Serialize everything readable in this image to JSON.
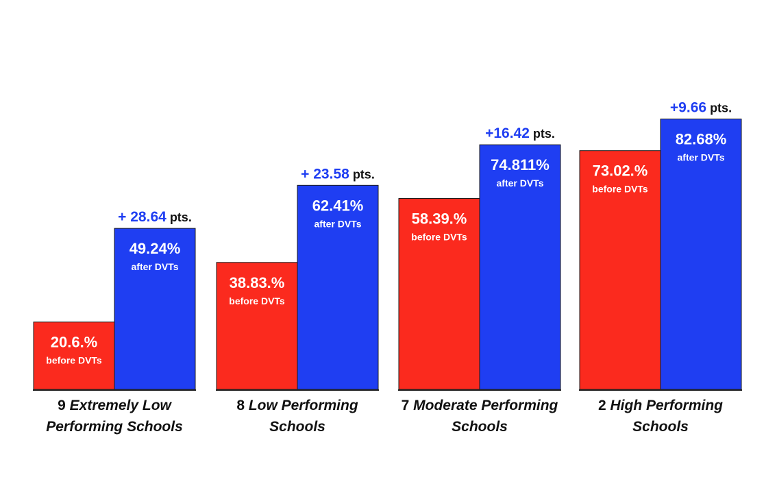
{
  "chart_data": {
    "type": "bar",
    "colors": {
      "before": "#fb2a1e",
      "after": "#1f3ef2",
      "delta_text": "#1f3ef2",
      "baseline": "#222222"
    },
    "categories": [
      {
        "count": "9",
        "lines": [
          {
            "lead": "9 ",
            "rest": "Extremely Low"
          },
          {
            "lead": "",
            "rest": "Performing Schools"
          }
        ]
      },
      {
        "count": "8",
        "lines": [
          {
            "lead": "8 ",
            "rest": "Low Performing"
          },
          {
            "lead": "",
            "rest": "Schools"
          }
        ]
      },
      {
        "count": "7",
        "lines": [
          {
            "lead": "7 ",
            "rest": "Moderate Performing"
          },
          {
            "lead": "",
            "rest": "Schools"
          }
        ]
      },
      {
        "count": "2",
        "lines": [
          {
            "lead": "2 ",
            "rest": "High Performing"
          },
          {
            "lead": "",
            "rest": "Schools"
          }
        ]
      }
    ],
    "series": [
      {
        "key": "before",
        "values": [
          20.6,
          38.83,
          58.39,
          73.02
        ],
        "labels": [
          "20.6.%",
          "38.83.%",
          "58.39.%",
          "73.02.%"
        ],
        "sublabel": "before DVTs"
      },
      {
        "key": "after",
        "values": [
          49.24,
          62.41,
          74.811,
          82.68
        ],
        "labels": [
          "49.24%",
          "62.41%",
          "74.811%",
          "82.68%"
        ],
        "sublabel": "after DVTs"
      }
    ],
    "deltas": [
      "+ 28.64",
      "+ 23.58",
      "+16.42",
      "+9.66"
    ],
    "delta_unit": "pts.",
    "ylim": [
      0,
      100
    ],
    "grid": false,
    "legend": "none"
  }
}
